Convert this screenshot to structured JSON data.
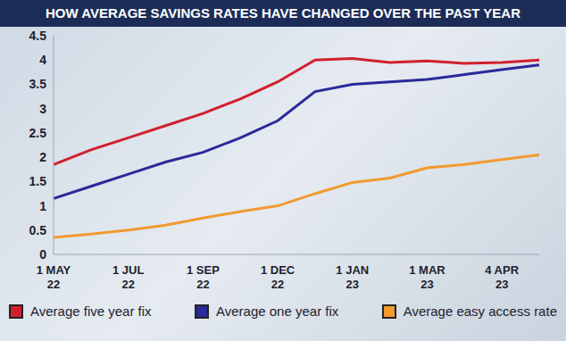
{
  "chart_data": {
    "type": "line",
    "title": "HOW AVERAGE SAVINGS RATES HAVE CHANGED OVER THE PAST YEAR",
    "categories": [
      "1 MAY 22",
      null,
      "1 JUL 22",
      null,
      "1 SEP 22",
      null,
      "1 DEC 22",
      null,
      "1 JAN 23",
      null,
      "1 MAR 23",
      null,
      "4 APR 23",
      null
    ],
    "series": [
      {
        "name": "Average five year fix",
        "color": "#d0202e",
        "values": [
          1.85,
          2.15,
          2.4,
          2.65,
          2.9,
          3.2,
          3.55,
          4.0,
          4.03,
          3.95,
          3.98,
          3.93,
          3.95,
          4.0
        ]
      },
      {
        "name": "Average one year fix",
        "color": "#2a2a9a",
        "values": [
          1.15,
          1.4,
          1.65,
          1.9,
          2.1,
          2.4,
          2.75,
          3.35,
          3.5,
          3.55,
          3.6,
          3.7,
          3.8,
          3.9
        ]
      },
      {
        "name": "Average easy access rate",
        "color": "#f29a2e",
        "values": [
          0.35,
          0.42,
          0.5,
          0.6,
          0.75,
          0.88,
          1.0,
          1.25,
          1.48,
          1.57,
          1.78,
          1.85,
          1.95,
          2.05
        ]
      }
    ],
    "ylim": [
      0,
      4.5
    ],
    "yticks": [
      0,
      0.5,
      1,
      1.5,
      2,
      2.5,
      3,
      3.5,
      4,
      4.5
    ],
    "grid": false,
    "legend": "bottom"
  }
}
